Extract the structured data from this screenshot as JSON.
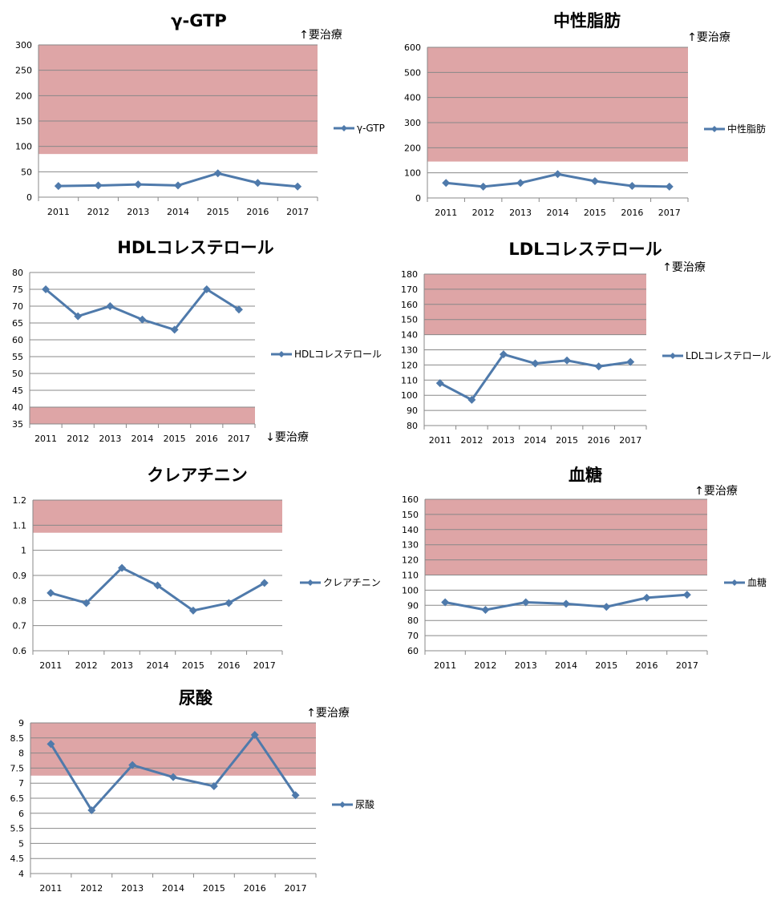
{
  "colors": {
    "series": "#4f7aab",
    "band": "#dea5a6",
    "grid": "#888888",
    "axis": "#888888"
  },
  "chart_data": [
    {
      "type": "line",
      "title": "γ-GTP",
      "categories": [
        "2011",
        "2012",
        "2013",
        "2014",
        "2015",
        "2016",
        "2017"
      ],
      "series": [
        {
          "name": "γ-GTP",
          "values": [
            22,
            23,
            25,
            23,
            47,
            28,
            21
          ]
        }
      ],
      "ylim": [
        0,
        300
      ],
      "yticks": [
        "0",
        "50",
        "100",
        "150",
        "200",
        "250",
        "300"
      ],
      "band": {
        "from": 85,
        "to": 300
      },
      "note": "↑要治療",
      "grid": true,
      "legend": "right"
    },
    {
      "type": "line",
      "title": "中性脂肪",
      "categories": [
        "2011",
        "2012",
        "2013",
        "2014",
        "2015",
        "2016",
        "2017"
      ],
      "series": [
        {
          "name": "中性脂肪",
          "values": [
            60,
            45,
            60,
            95,
            67,
            48,
            45
          ]
        }
      ],
      "ylim": [
        0,
        600
      ],
      "yticks": [
        "0",
        "100",
        "200",
        "300",
        "400",
        "500",
        "600"
      ],
      "band": {
        "from": 145,
        "to": 600
      },
      "note": "↑要治療",
      "grid": true,
      "legend": "right"
    },
    {
      "type": "line",
      "title": "HDLコレステロール",
      "categories": [
        "2011",
        "2012",
        "2013",
        "2014",
        "2015",
        "2016",
        "2017"
      ],
      "series": [
        {
          "name": "HDLコレステロール",
          "values": [
            75,
            67,
            70,
            66,
            63,
            75,
            69
          ]
        }
      ],
      "ylim": [
        35,
        80
      ],
      "yticks": [
        "35",
        "40",
        "45",
        "50",
        "55",
        "60",
        "65",
        "70",
        "75",
        "80"
      ],
      "band": {
        "from": 35,
        "to": 40
      },
      "note": "↓要治療",
      "grid": true,
      "legend": "right"
    },
    {
      "type": "line",
      "title": "LDLコレステロール",
      "categories": [
        "2011",
        "2012",
        "2013",
        "2014",
        "2015",
        "2016",
        "2017"
      ],
      "series": [
        {
          "name": "LDLコレステロール",
          "values": [
            108,
            97,
            127,
            121,
            123,
            119,
            122
          ]
        }
      ],
      "ylim": [
        80,
        180
      ],
      "yticks": [
        "80",
        "90",
        "100",
        "110",
        "120",
        "130",
        "140",
        "150",
        "160",
        "170",
        "180"
      ],
      "band": {
        "from": 140,
        "to": 180
      },
      "note": "↑要治療",
      "grid": true,
      "legend": "right"
    },
    {
      "type": "line",
      "title": "クレアチニン",
      "categories": [
        "2011",
        "2012",
        "2013",
        "2014",
        "2015",
        "2016",
        "2017"
      ],
      "series": [
        {
          "name": "クレアチニン",
          "values": [
            0.83,
            0.79,
            0.93,
            0.86,
            0.76,
            0.79,
            0.87
          ]
        }
      ],
      "ylim": [
        0.6,
        1.2
      ],
      "yticks": [
        "0.6",
        "0.7",
        "0.8",
        "0.9",
        "1",
        "1.1",
        "1.2"
      ],
      "band": {
        "from": 1.07,
        "to": 1.21
      },
      "note": "",
      "grid": true,
      "legend": "right"
    },
    {
      "type": "line",
      "title": "血糖",
      "categories": [
        "2011",
        "2012",
        "2013",
        "2014",
        "2015",
        "2016",
        "2017"
      ],
      "series": [
        {
          "name": "血糖",
          "values": [
            92,
            87,
            92,
            91,
            89,
            95,
            97
          ]
        }
      ],
      "ylim": [
        60,
        160
      ],
      "yticks": [
        "60",
        "70",
        "80",
        "90",
        "100",
        "110",
        "120",
        "130",
        "140",
        "150",
        "160"
      ],
      "band": {
        "from": 110,
        "to": 160
      },
      "note": "↑要治療",
      "grid": true,
      "legend": "right"
    },
    {
      "type": "line",
      "title": "尿酸",
      "categories": [
        "2011",
        "2012",
        "2013",
        "2014",
        "2015",
        "2016",
        "2017"
      ],
      "series": [
        {
          "name": "尿酸",
          "values": [
            8.3,
            6.1,
            7.6,
            7.2,
            6.9,
            8.6,
            6.6
          ]
        }
      ],
      "ylim": [
        4,
        9
      ],
      "yticks": [
        "4",
        "4.5",
        "5",
        "5.5",
        "6",
        "6.5",
        "7",
        "7.5",
        "8",
        "8.5",
        "9"
      ],
      "band": {
        "from": 7.25,
        "to": 9
      },
      "note": "↑要治療",
      "grid": true,
      "legend": "right"
    }
  ]
}
